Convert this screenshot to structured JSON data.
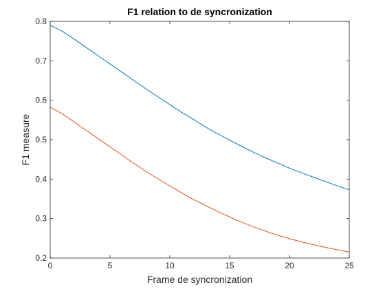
{
  "chart_data": {
    "type": "line",
    "title": "F1 relation to de syncronization",
    "xlabel": "Frame de syncronization",
    "ylabel": "F1 measure",
    "xlim": [
      0,
      25
    ],
    "ylim": [
      0.2,
      0.8
    ],
    "xticks": [
      "0",
      "5",
      "10",
      "15",
      "20",
      "25"
    ],
    "yticks": [
      "0.2",
      "0.3",
      "0.4",
      "0.5",
      "0.6",
      "0.7",
      "0.8"
    ],
    "grid": false,
    "series": [
      {
        "color": "#0072BD",
        "x": [
          0,
          1,
          2,
          3,
          4,
          5,
          6,
          7,
          8,
          9,
          10,
          11,
          12,
          13,
          14,
          15,
          16,
          17,
          18,
          19,
          20,
          21,
          22,
          23,
          24,
          25
        ],
        "values": [
          0.79,
          0.775,
          0.755,
          0.734,
          0.713,
          0.692,
          0.671,
          0.65,
          0.629,
          0.609,
          0.589,
          0.569,
          0.551,
          0.532,
          0.515,
          0.499,
          0.483,
          0.468,
          0.454,
          0.441,
          0.428,
          0.416,
          0.405,
          0.394,
          0.383,
          0.373
        ]
      },
      {
        "color": "#D95319",
        "x": [
          0,
          1,
          2,
          3,
          4,
          5,
          6,
          7,
          8,
          9,
          10,
          11,
          12,
          13,
          14,
          15,
          16,
          17,
          18,
          19,
          20,
          21,
          22,
          23,
          24,
          25
        ],
        "values": [
          0.582,
          0.566,
          0.545,
          0.524,
          0.503,
          0.482,
          0.461,
          0.44,
          0.42,
          0.401,
          0.383,
          0.365,
          0.348,
          0.333,
          0.318,
          0.304,
          0.291,
          0.279,
          0.268,
          0.258,
          0.249,
          0.241,
          0.234,
          0.227,
          0.221,
          0.215
        ]
      }
    ]
  }
}
